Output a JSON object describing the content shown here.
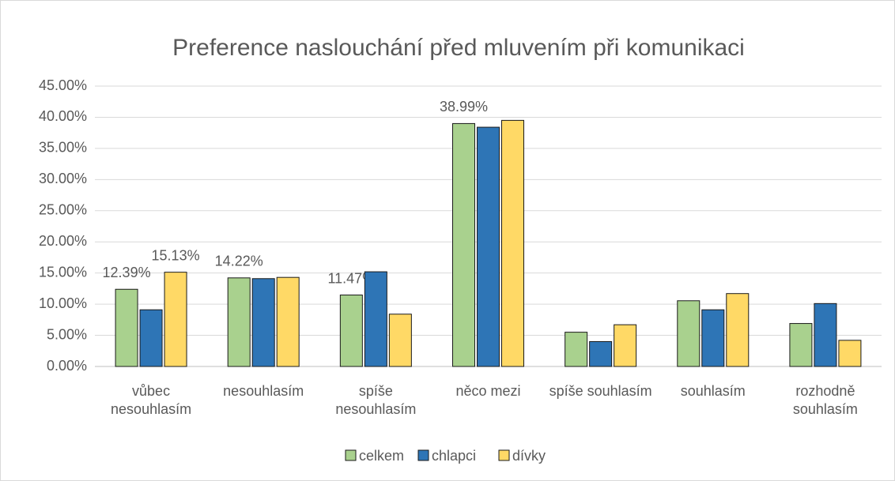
{
  "chart_data": {
    "type": "bar",
    "title": "Preference naslouchání před mluvením při komunikaci",
    "categories": [
      "vůbec nesouhlasím",
      "nesouhlasím",
      "spíše nesouhlasím",
      "něco mezi",
      "spíše souhlasím",
      "souhlasím",
      "rozhodně souhlasím"
    ],
    "series": [
      {
        "name": "celkem",
        "color": "#a9d18e",
        "values": [
          12.39,
          14.22,
          11.47,
          38.99,
          5.5,
          10.55,
          6.9
        ],
        "value_labels": [
          "12.39%",
          "14.22%",
          "11.47%",
          "38.99%",
          null,
          null,
          null
        ]
      },
      {
        "name": "chlapci",
        "color": "#2e75b6",
        "values": [
          9.1,
          14.1,
          15.2,
          38.4,
          4.0,
          9.1,
          10.1
        ]
      },
      {
        "name": "dívky",
        "color": "#ffd966",
        "values": [
          15.13,
          14.3,
          8.4,
          39.5,
          6.7,
          11.7,
          4.2
        ],
        "value_labels": [
          "15.13%",
          null,
          null,
          null,
          null,
          null,
          null
        ]
      }
    ],
    "ylim": [
      0,
      45
    ],
    "yticks": [
      {
        "value": 0,
        "label": "0.00%"
      },
      {
        "value": 5,
        "label": "5.00%"
      },
      {
        "value": 10,
        "label": "10.00%"
      },
      {
        "value": 15,
        "label": "15.00%"
      },
      {
        "value": 20,
        "label": "20.00%"
      },
      {
        "value": 25,
        "label": "25.00%"
      },
      {
        "value": 30,
        "label": "30.00%"
      },
      {
        "value": 35,
        "label": "35.00%"
      },
      {
        "value": 40,
        "label": "40.00%"
      },
      {
        "value": 45,
        "label": "45.00%"
      }
    ],
    "grid": true,
    "legend": "bottom"
  }
}
